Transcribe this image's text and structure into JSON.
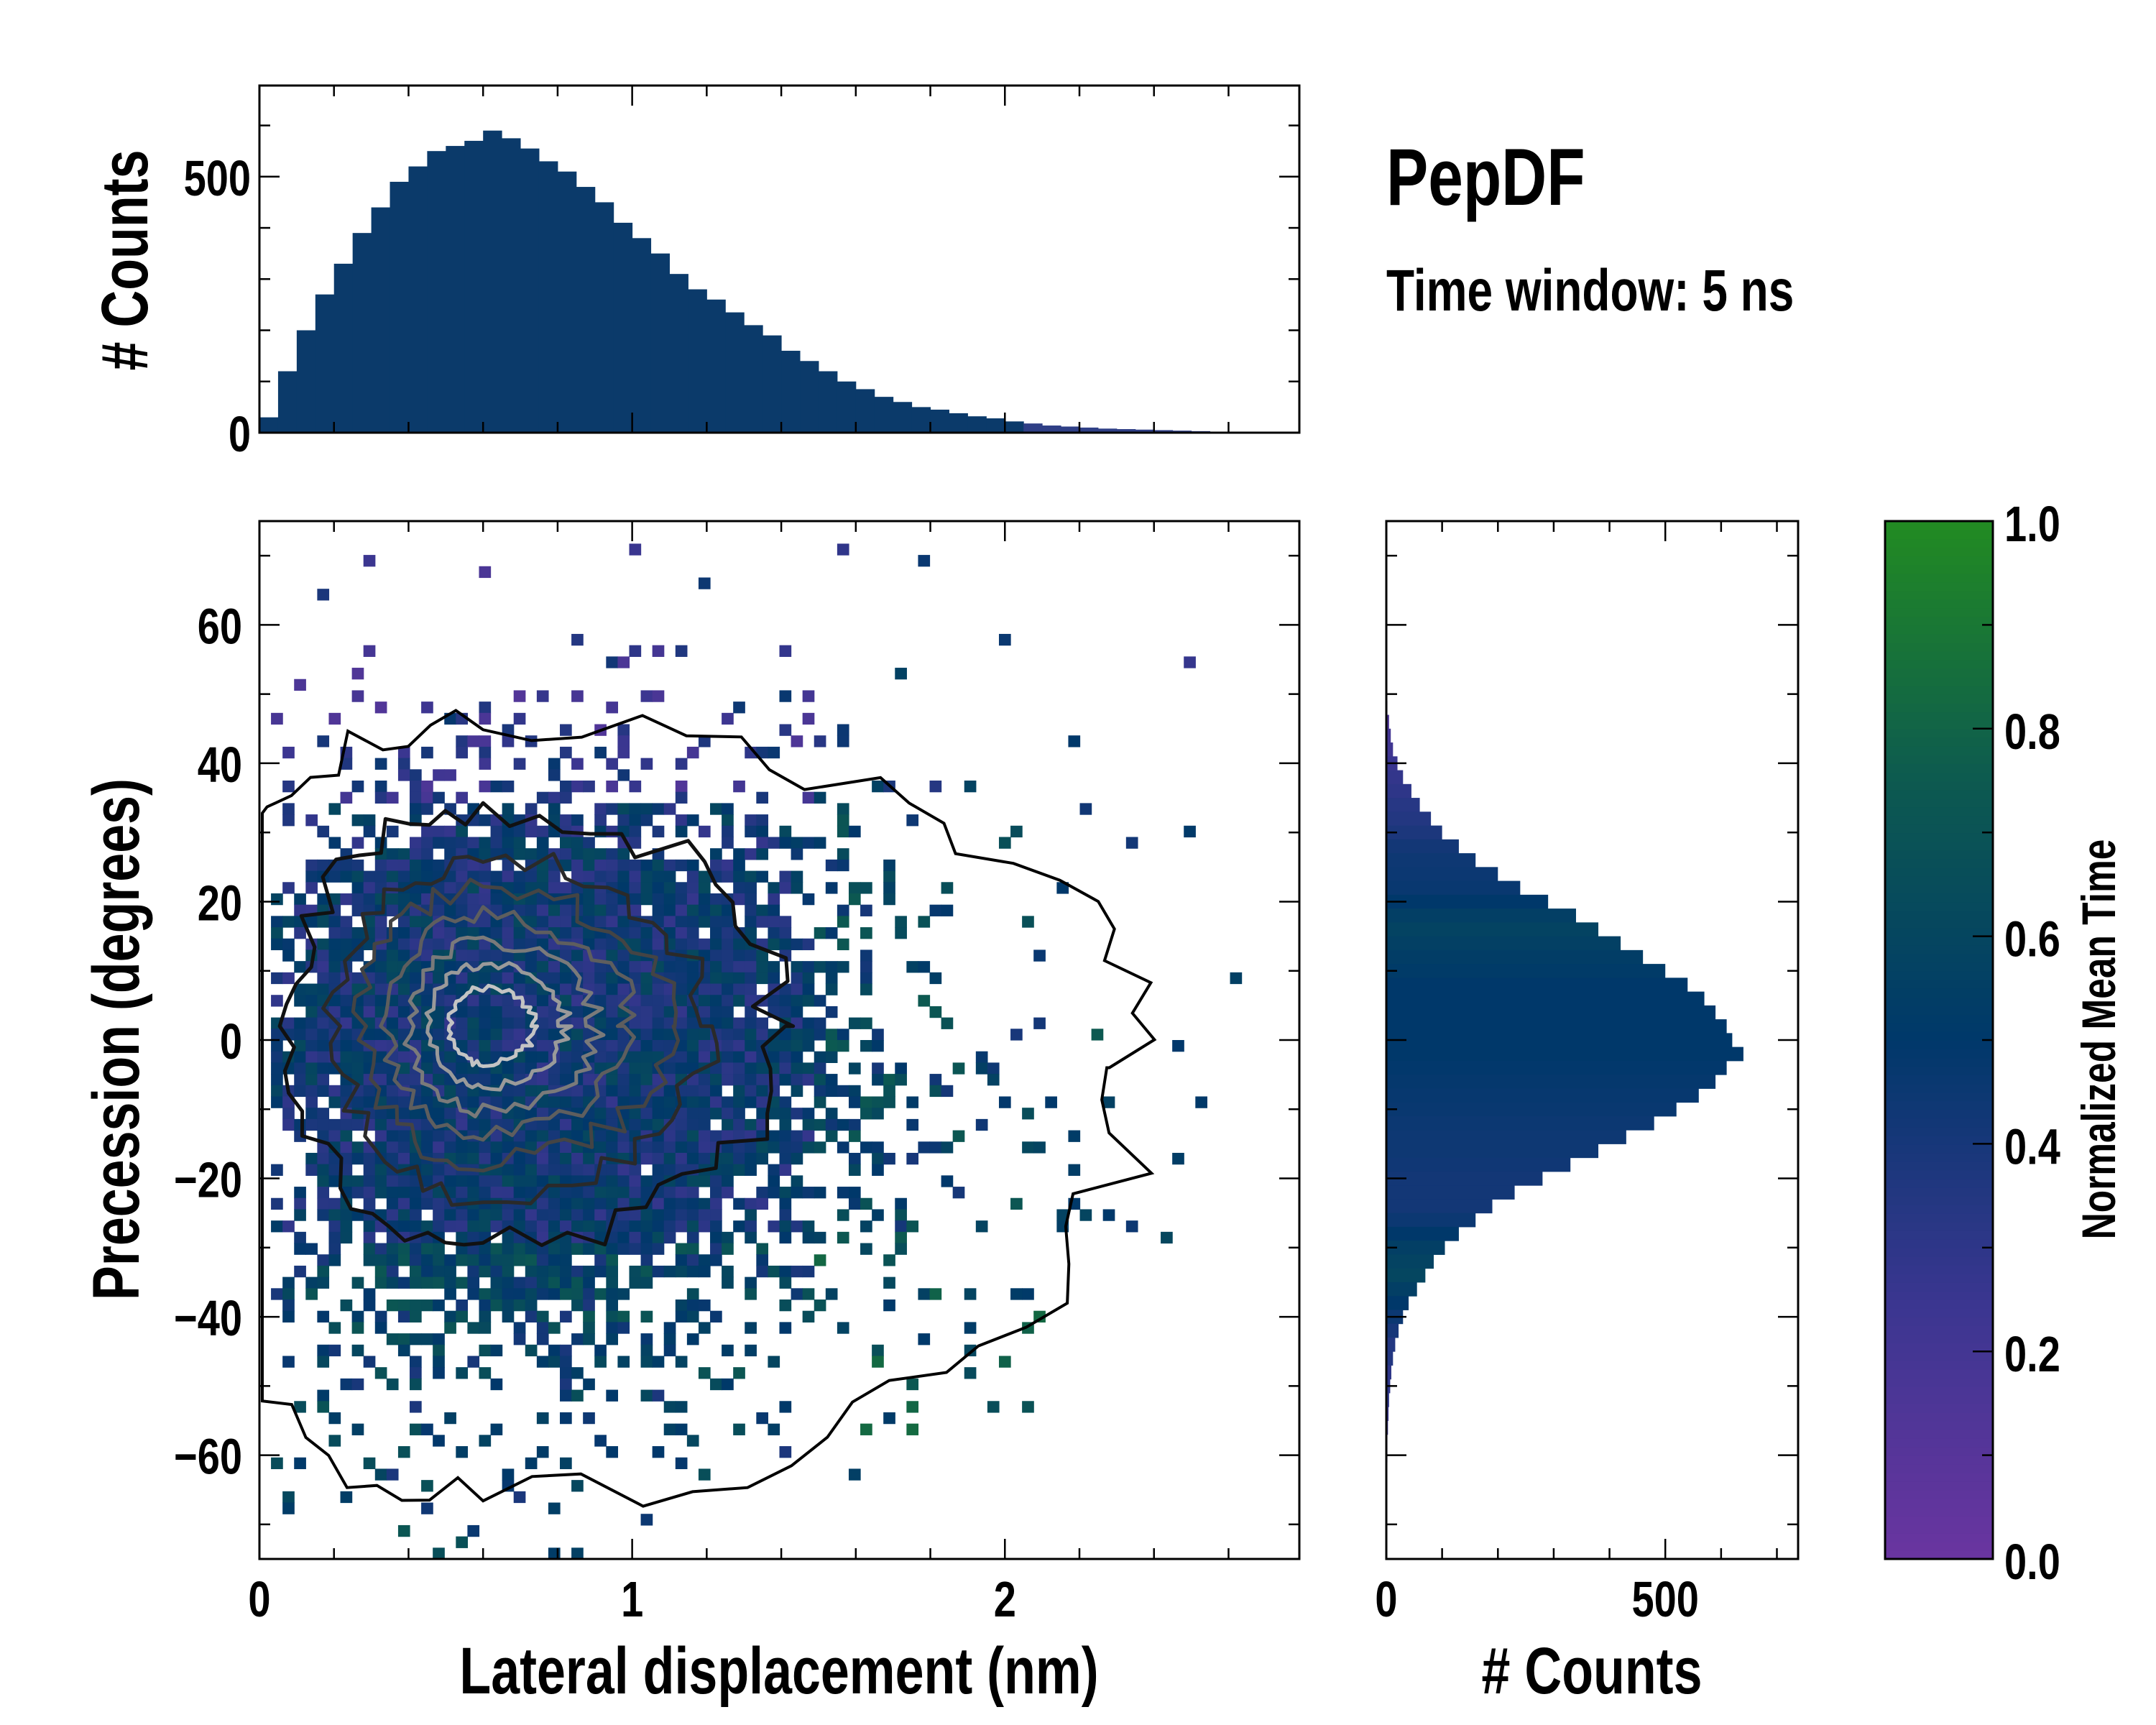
{
  "chart_data": [
    {
      "type": "bar",
      "name": "top-marginal-histogram",
      "ylabel": "# Counts",
      "ylim": [
        0,
        678
      ],
      "xlim": [
        0,
        2.79
      ],
      "yticks": [
        "0",
        "500"
      ],
      "ytick_values": [
        0,
        500
      ],
      "bin_width": 0.05,
      "bin_starts_from": 0,
      "values": [
        30,
        120,
        200,
        270,
        330,
        390,
        440,
        490,
        520,
        550,
        560,
        570,
        590,
        575,
        555,
        530,
        510,
        480,
        450,
        410,
        380,
        350,
        310,
        280,
        260,
        235,
        210,
        190,
        160,
        140,
        120,
        100,
        85,
        70,
        60,
        50,
        45,
        38,
        32,
        28,
        22,
        18,
        14,
        12,
        10,
        8,
        7,
        6,
        5,
        4,
        3,
        2,
        1,
        1,
        0,
        0
      ],
      "color": "#0b3a6a"
    },
    {
      "type": "heatmap",
      "name": "main-2d-histogram",
      "xlabel": "Lateral displacement (nm)",
      "ylabel": "Precession (degrees)",
      "xlim": [
        0,
        2.79
      ],
      "ylim": [
        -75,
        75
      ],
      "xticks": [
        "0",
        "1",
        "2"
      ],
      "xtick_values": [
        0,
        1,
        2
      ],
      "yticks": [
        "60",
        "40",
        "20",
        "0",
        "−20",
        "−40",
        "−60"
      ],
      "ytick_values": [
        60,
        40,
        20,
        0,
        -20,
        -40,
        -60
      ],
      "color_value": "Normalized Mean Time",
      "density_center": {
        "x": 0.6,
        "y": 0
      },
      "density_spread": {
        "x": 0.45,
        "y": 17
      },
      "contour_levels": 7,
      "contour_colors": [
        "#111111",
        "#2a2a2a",
        "#444444",
        "#5e5e5e",
        "#7a7a7a",
        "#9a9a9a",
        "#c4c4c4"
      ]
    },
    {
      "type": "bar",
      "orientation": "horizontal",
      "name": "right-marginal-histogram",
      "xlabel": "# Counts",
      "xlim": [
        0,
        738
      ],
      "xticks": [
        "0",
        "500"
      ],
      "xtick_values": [
        0,
        500
      ],
      "ylim": [
        -75,
        75
      ],
      "bin_centers": [
        48,
        46,
        44,
        42,
        40,
        38,
        36,
        34,
        32,
        30,
        28,
        26,
        24,
        22,
        20,
        18,
        16,
        14,
        12,
        10,
        8,
        6,
        4,
        2,
        0,
        -2,
        -4,
        -6,
        -8,
        -10,
        -12,
        -14,
        -16,
        -18,
        -20,
        -22,
        -24,
        -26,
        -28,
        -30,
        -32,
        -34,
        -36,
        -38,
        -40,
        -42,
        -44,
        -46,
        -48,
        -50,
        -52,
        -54,
        -56,
        -58,
        -60,
        -62
      ],
      "values": [
        2,
        5,
        8,
        12,
        20,
        30,
        45,
        60,
        80,
        100,
        130,
        160,
        200,
        240,
        290,
        340,
        380,
        420,
        460,
        500,
        540,
        570,
        590,
        610,
        620,
        640,
        610,
        590,
        560,
        520,
        480,
        430,
        380,
        330,
        280,
        230,
        190,
        160,
        130,
        105,
        85,
        70,
        55,
        40,
        30,
        22,
        16,
        12,
        9,
        7,
        5,
        4,
        3,
        2,
        2,
        1
      ],
      "mean_time": [
        0.1,
        0.15,
        0.2,
        0.22,
        0.25,
        0.28,
        0.3,
        0.33,
        0.35,
        0.38,
        0.42,
        0.44,
        0.45,
        0.46,
        0.5,
        0.55,
        0.58,
        0.56,
        0.54,
        0.52,
        0.5,
        0.5,
        0.5,
        0.5,
        0.5,
        0.5,
        0.49,
        0.48,
        0.47,
        0.46,
        0.45,
        0.44,
        0.44,
        0.43,
        0.42,
        0.42,
        0.42,
        0.45,
        0.5,
        0.55,
        0.58,
        0.6,
        0.55,
        0.5,
        0.45,
        0.4,
        0.35,
        0.35,
        0.3,
        0.3,
        0.3,
        0.25,
        0.25,
        0.2,
        0.2,
        0.2
      ]
    },
    {
      "type": "colorbar",
      "name": "colorbar",
      "label": "Normalized Mean Time",
      "range": [
        0,
        1
      ],
      "ticks": [
        "0.0",
        "0.2",
        "0.4",
        "0.6",
        "0.8",
        "1.0"
      ],
      "tick_values": [
        0,
        0.2,
        0.4,
        0.6,
        0.8,
        1.0
      ],
      "colormap": [
        "#6a35a0",
        "#3a3690",
        "#00386a",
        "#0d5a50",
        "#228b22"
      ]
    }
  ],
  "annotations": {
    "title": "PepDF",
    "subtitle": "Time window: 5 ns"
  }
}
